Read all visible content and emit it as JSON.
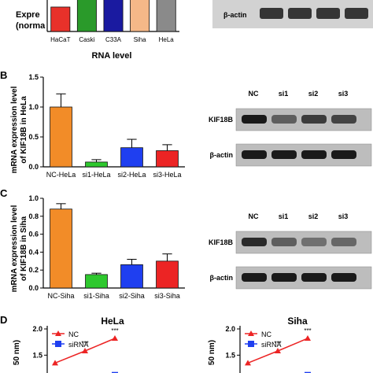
{
  "panels": {
    "A": {
      "label": "",
      "ylabel": [
        "Expre",
        "(norma"
      ],
      "xlabel": "RNA level",
      "blot_label": "β-actin",
      "chart_data": {
        "type": "bar",
        "categories": [
          "HaCaT",
          "Caski",
          "C33A",
          "Siha",
          "HeLa"
        ],
        "values": [
          2.3,
          3.9,
          3.3,
          3.9,
          3.9
        ],
        "errors": [
          0,
          0.15,
          0.15,
          0.15,
          0.15
        ],
        "colors": [
          "#e8312a",
          "#2a9a2a",
          "#1a1aa0",
          "#f5b888",
          "#8a8a8a"
        ],
        "ylim": [
          0,
          4
        ],
        "title": "",
        "xlabel": "RNA level",
        "ylabel": ""
      }
    },
    "B": {
      "label": "B",
      "ylabel": [
        "mRNA expression level",
        "of KIF18B in HeLa"
      ],
      "blot_lanes": [
        "NC",
        "si1",
        "si2",
        "si3"
      ],
      "blot_rows": [
        "KIF18B",
        "β-actin"
      ],
      "chart_data": {
        "type": "bar",
        "categories": [
          "NC-HeLa",
          "si1-HeLa",
          "si2-HeLa",
          "si3-HeLa"
        ],
        "values": [
          1.0,
          0.08,
          0.32,
          0.27
        ],
        "errors": [
          0.22,
          0.04,
          0.14,
          0.1
        ],
        "colors": [
          "#f28c28",
          "#2ec82e",
          "#1f3ff0",
          "#ec2424"
        ],
        "ylim": [
          0,
          1.5
        ],
        "yticks": [
          0.0,
          0.5,
          1.0,
          1.5
        ],
        "title": "",
        "xlabel": "",
        "ylabel": "mRNA expression level of KIF18B in HeLa"
      }
    },
    "C": {
      "label": "C",
      "ylabel": [
        "mRNA expression level",
        "of KIF18B in Siha"
      ],
      "blot_lanes": [
        "NC",
        "si1",
        "si2",
        "si3"
      ],
      "blot_rows": [
        "KIF18B",
        "β-actin"
      ],
      "chart_data": {
        "type": "bar",
        "categories": [
          "NC-Siha",
          "si1-Siha",
          "si2-Siha",
          "si3-Siha"
        ],
        "values": [
          0.88,
          0.15,
          0.26,
          0.3
        ],
        "errors": [
          0.06,
          0.015,
          0.06,
          0.08
        ],
        "colors": [
          "#f28c28",
          "#2ec82e",
          "#1f3ff0",
          "#ec2424"
        ],
        "ylim": [
          0,
          1.0
        ],
        "yticks": [
          0.0,
          0.2,
          0.4,
          0.6,
          0.8,
          1.0
        ],
        "title": "",
        "xlabel": "",
        "ylabel": "mRNA expression level of KIF18B in Siha"
      }
    },
    "D": {
      "label": "D",
      "charts": [
        {
          "title": "HeLa",
          "ylabel": "50 nm)",
          "yticks": [
            "2.0",
            "1.5"
          ],
          "legend": [
            "NC",
            "siRNA"
          ],
          "annotations": [
            "***",
            "***"
          ],
          "chart_data": {
            "type": "line",
            "title": "HeLa",
            "series": [
              {
                "name": "NC",
                "color": "#ec2424",
                "values": [
                  1.35,
                  1.58,
                  1.82
                ]
              },
              {
                "name": "siRNA",
                "color": "#1f3ff0",
                "values": [
                  null,
                  null,
                  1.12
                ]
              }
            ],
            "ylim": [
              1.1,
              2.0
            ]
          }
        },
        {
          "title": "Siha",
          "ylabel": "50 nm)",
          "yticks": [
            "2.0",
            "1.5"
          ],
          "legend": [
            "NC",
            "siRNA"
          ],
          "annotations": [
            "***",
            "***"
          ],
          "chart_data": {
            "type": "line",
            "title": "Siha",
            "series": [
              {
                "name": "NC",
                "color": "#ec2424",
                "values": [
                  1.35,
                  1.58,
                  1.82
                ]
              },
              {
                "name": "siRNA",
                "color": "#1f3ff0",
                "values": [
                  null,
                  null,
                  1.12
                ]
              }
            ],
            "ylim": [
              1.1,
              2.0
            ]
          }
        }
      ]
    }
  }
}
